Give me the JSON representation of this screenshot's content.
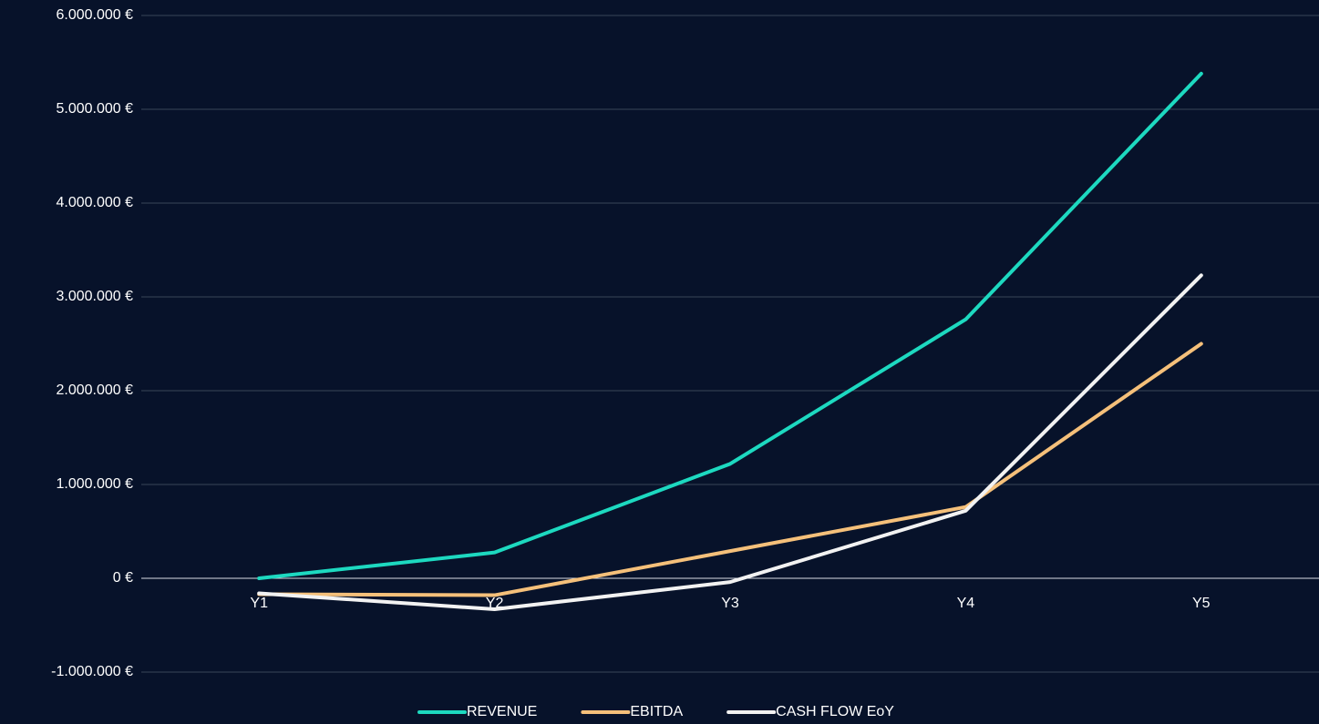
{
  "chart_data": {
    "type": "line",
    "categories": [
      "Y1",
      "Y2",
      "Y3",
      "Y4",
      "Y5"
    ],
    "series": [
      {
        "name": "REVENUE",
        "color": "#1dd9c0",
        "values": [
          0,
          275000,
          1220000,
          2760000,
          5380000
        ]
      },
      {
        "name": "EBITDA",
        "color": "#f5c07a",
        "values": [
          -170000,
          -180000,
          290000,
          760000,
          2500000
        ]
      },
      {
        "name": "CASH FLOW EoY",
        "color": "#f2f2f2",
        "values": [
          -160000,
          -330000,
          -40000,
          720000,
          3230000
        ]
      }
    ],
    "ylim": [
      -1000000,
      6000000
    ],
    "yticks": [
      {
        "value": -1000000,
        "label": "-1.000.000 €"
      },
      {
        "value": 0,
        "label": "0 €"
      },
      {
        "value": 1000000,
        "label": "1.000.000 €"
      },
      {
        "value": 2000000,
        "label": "2.000.000 €"
      },
      {
        "value": 3000000,
        "label": "3.000.000 €"
      },
      {
        "value": 4000000,
        "label": "4.000.000 €"
      },
      {
        "value": 5000000,
        "label": "5.000.000 €"
      },
      {
        "value": 6000000,
        "label": "6.000.000 €"
      }
    ],
    "grid": true,
    "legend": "bottom"
  }
}
